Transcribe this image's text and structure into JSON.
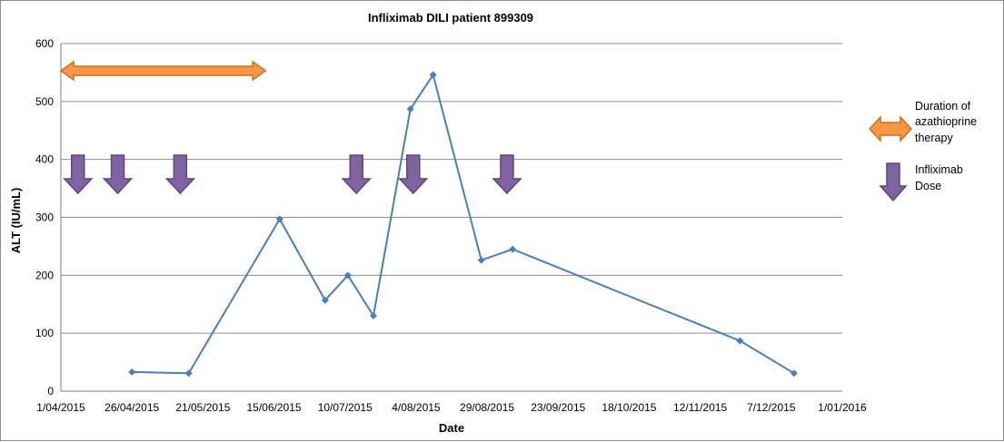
{
  "chart_data": {
    "type": "line",
    "title": "Infliximab DILI patient 899309",
    "xlabel": "Date",
    "ylabel": "ALT (IU/mL)",
    "ylim": [
      0,
      600
    ],
    "yticks": [
      0,
      100,
      200,
      300,
      400,
      500,
      600
    ],
    "xlim": [
      "2015-04-01",
      "2016-01-01"
    ],
    "xtick_labels": [
      "1/04/2015",
      "26/04/2015",
      "21/05/2015",
      "15/06/2015",
      "10/07/2015",
      "4/08/2015",
      "29/08/2015",
      "23/09/2015",
      "18/10/2015",
      "12/11/2015",
      "7/12/2015",
      "1/01/2016"
    ],
    "grid": true,
    "series": [
      {
        "values": [
          {
            "x": "2015-04-26",
            "y": 33
          },
          {
            "x": "2015-05-16",
            "y": 31
          },
          {
            "x": "2015-06-17",
            "y": 297
          },
          {
            "x": "2015-07-03",
            "y": 157
          },
          {
            "x": "2015-07-11",
            "y": 200
          },
          {
            "x": "2015-07-20",
            "y": 130
          },
          {
            "x": "2015-08-02",
            "y": 487
          },
          {
            "x": "2015-08-10",
            "y": 546
          },
          {
            "x": "2015-08-27",
            "y": 226
          },
          {
            "x": "2015-09-07",
            "y": 245
          },
          {
            "x": "2015-11-26",
            "y": 87
          },
          {
            "x": "2015-12-15",
            "y": 31
          }
        ],
        "color": "#4a7ebb"
      }
    ],
    "annotations": {
      "azathioprine": {
        "from": "2015-04-01",
        "to": "2015-06-12",
        "color": "#f79646",
        "stroke": "#d06e1c"
      },
      "infliximab_doses": [
        "2015-04-07",
        "2015-04-21",
        "2015-05-13",
        "2015-07-14",
        "2015-08-03",
        "2015-09-05"
      ],
      "dose_color": "#8064a2",
      "dose_stroke": "#5c4776"
    },
    "legend": {
      "position": "right",
      "entries": [
        {
          "label": "Duration of azathioprine therapy",
          "lines": [
            "Duration of",
            "azathioprine",
            "therapy"
          ],
          "icon": "double-arrow-icon"
        },
        {
          "label": "Infliximab Dose",
          "lines": [
            "Infliximab",
            "Dose"
          ],
          "icon": "down-arrow-icon"
        }
      ]
    }
  }
}
